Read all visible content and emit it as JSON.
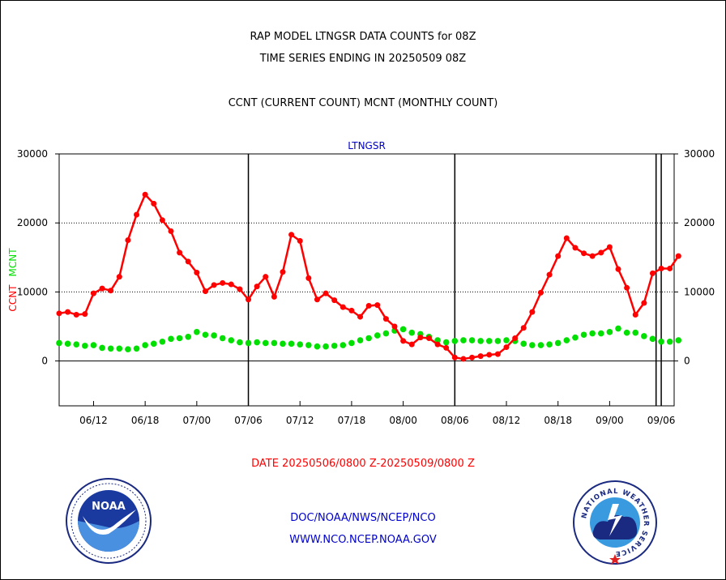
{
  "header": {
    "line1": "RAP MODEL LTNGSR DATA COUNTS for 08Z",
    "line2": "TIME SERIES ENDING IN 20250509 08Z",
    "line3": "CCNT (CURRENT COUNT) MCNT (MONTHLY COUNT)"
  },
  "footer": {
    "date_range": "DATE 20250506/0800 Z-20250509/0800 Z",
    "org": "DOC/NOAA/NWS/NCEP/NCO",
    "url": "WWW.NCO.NCEP.NOAA.GOV"
  },
  "logos": {
    "noaa_text": "NOAA",
    "nws_text": "NATIONAL WEATHER SERVICE"
  },
  "colors": {
    "ccnt": "#ff0000",
    "mcnt": "#00e000",
    "panel_title": "#0000cc",
    "footer_links": "#0000cc"
  },
  "chart_data": {
    "type": "line",
    "title": "LTNGSR",
    "ylabel_series": [
      "CCNT",
      "MCNT"
    ],
    "ylim": [
      -6500,
      30000
    ],
    "yticks": [
      0,
      10000,
      20000,
      30000
    ],
    "ytick_labels": [
      "0",
      "10000",
      "20000",
      "30000"
    ],
    "grid_y": [
      10000,
      20000
    ],
    "xlim": [
      0,
      71.5
    ],
    "xticks": [
      4,
      10,
      16,
      22,
      28,
      34,
      40,
      46,
      52,
      58,
      64,
      70
    ],
    "xtick_labels": [
      "06/12",
      "06/18",
      "07/00",
      "07/06",
      "07/12",
      "07/18",
      "08/00",
      "08/06",
      "08/12",
      "08/18",
      "09/00",
      "09/06"
    ],
    "day_boundaries_x": [
      22,
      46,
      69.4,
      70
    ],
    "series": [
      {
        "name": "CCNT",
        "values": [
          6900,
          7100,
          6700,
          6800,
          9800,
          10500,
          10200,
          12200,
          17500,
          21200,
          24100,
          22800,
          20400,
          18800,
          15700,
          14400,
          12800,
          10100,
          11000,
          11300,
          11100,
          10400,
          8900,
          10800,
          12200,
          9300,
          12900,
          18300,
          17400,
          12000,
          8900,
          9800,
          8800,
          7800,
          7300,
          6400,
          8000,
          8100,
          6100,
          5000,
          2900,
          2400,
          3400,
          3300,
          2400,
          1900,
          500,
          300,
          500,
          700,
          900,
          1000,
          2000,
          3300,
          4800,
          7100,
          9900,
          12500,
          15200,
          17800,
          16400,
          15600,
          15200,
          15700,
          16500,
          13300,
          10600,
          6700,
          8400,
          12700,
          13400,
          13400,
          15200
        ]
      },
      {
        "name": "MCNT",
        "values": [
          2600,
          2500,
          2400,
          2200,
          2300,
          1900,
          1800,
          1800,
          1700,
          1800,
          2300,
          2500,
          2800,
          3200,
          3300,
          3500,
          4200,
          3800,
          3700,
          3300,
          3000,
          2700,
          2600,
          2700,
          2600,
          2600,
          2500,
          2500,
          2400,
          2300,
          2100,
          2100,
          2200,
          2300,
          2600,
          3000,
          3300,
          3700,
          4000,
          4400,
          4600,
          4100,
          3900,
          3500,
          3000,
          2700,
          2900,
          3000,
          3000,
          2900,
          2900,
          2900,
          3000,
          2900,
          2500,
          2300,
          2300,
          2400,
          2600,
          3000,
          3400,
          3800,
          4000,
          4000,
          4200,
          4700,
          4100,
          4100,
          3600,
          3200,
          2800,
          2800,
          3000
        ]
      }
    ]
  }
}
